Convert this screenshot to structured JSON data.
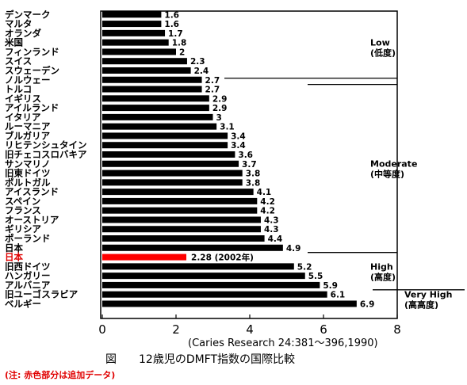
{
  "chart_data": {
    "type": "bar",
    "orientation": "horizontal",
    "categories": [
      "デンマーク",
      "マルタ",
      "オランダ",
      "米国",
      "フィンランド",
      "スイス",
      "スウェーデン",
      "ノルウェー",
      "トルコ",
      "イギリス",
      "アイルランド",
      "イタリア",
      "ルーマニア",
      "ブルガリア",
      "リヒテンシュタイン",
      "旧チェコスロバキア",
      "サンマリノ",
      "旧東ドイツ",
      "ポルトガル",
      "アイスランド",
      "スペイン",
      "フランス",
      "オーストリア",
      "ギリシア",
      "ポーランド",
      "日本",
      "日本",
      "旧西ドイツ",
      "ハンガリー",
      "アルバニア",
      "旧ユーゴスラビア",
      "ベルギー"
    ],
    "values": [
      1.6,
      1.6,
      1.7,
      1.8,
      2,
      2.3,
      2.4,
      2.7,
      2.7,
      2.9,
      2.9,
      3,
      3.1,
      3.4,
      3.4,
      3.6,
      3.7,
      3.8,
      3.8,
      4.1,
      4.2,
      4.2,
      4.3,
      4.3,
      4.4,
      4.9,
      2.28,
      5.2,
      5.5,
      5.9,
      6.1,
      6.9
    ],
    "value_labels": [
      "1.6",
      "1.6",
      "1.7",
      "1.8",
      "2",
      "2.3",
      "2.4",
      "2.7",
      "2.7",
      "2.9",
      "2.9",
      "3",
      "3.1",
      "3.4",
      "3.4",
      "3.6",
      "3.7",
      "3.8",
      "3.8",
      "4.1",
      "4.2",
      "4.2",
      "4.3",
      "4.3",
      "4.4",
      "4.9",
      "2.28 (2002年)",
      "5.2",
      "5.5",
      "5.9",
      "6.1",
      "6.9"
    ],
    "highlight_index": 26,
    "highlight_color": "#ff0000",
    "bar_color": "#000000",
    "xlim": [
      0,
      8
    ],
    "xticks": [
      "0",
      "2",
      "4",
      "6",
      "8"
    ],
    "groups": [
      {
        "line1": "Low",
        "line2": "(低度)",
        "from": 0,
        "to": 7
      },
      {
        "line1": "Moderate",
        "line2": "(中等度)",
        "from": 8,
        "to": 25
      },
      {
        "line1": "High",
        "line2": "(高度)",
        "from": 26,
        "to": 29
      },
      {
        "line1": "Very High",
        "line2": "(高高度)",
        "from": 30,
        "to": 31
      }
    ],
    "source": "(Caries Research 24:381～396,1990)",
    "caption": "図　　12歳児のDMFT指数の国際比較",
    "note": "(注: 赤色部分は追加データ)"
  }
}
